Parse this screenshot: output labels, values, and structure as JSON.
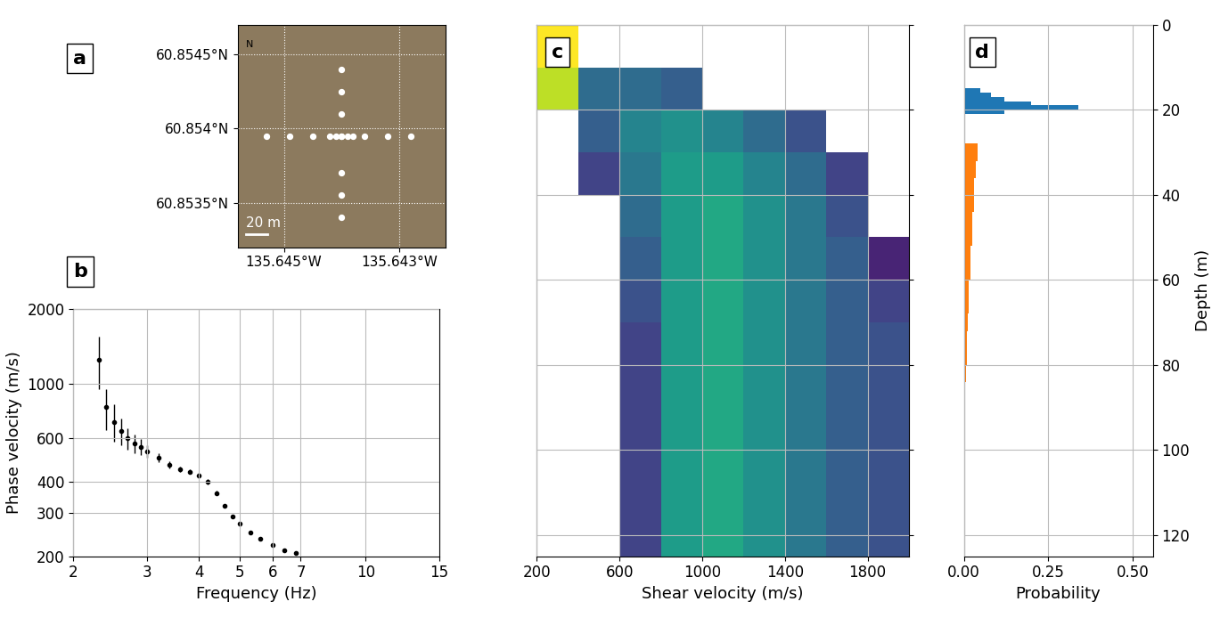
{
  "chart_data": [
    {
      "type": "map",
      "title": "a",
      "x": [
        -135.644,
        -135.644,
        -135.644,
        -135.644,
        -135.644,
        -135.644,
        -135.644,
        -135.644,
        -135.6453,
        -135.6449,
        -135.6445,
        -135.6442,
        -135.6438,
        -135.6436,
        -135.6432,
        -135.6428,
        -135.6441,
        -135.6439
      ],
      "y": [
        60.8544,
        60.85425,
        60.8541,
        60.85395,
        60.85395,
        60.8537,
        60.85355,
        60.8534,
        60.85395,
        60.85395,
        60.85395,
        60.85395,
        60.85395,
        60.85395,
        60.85395,
        60.85395,
        60.85395,
        60.85395
      ],
      "xlim": [
        -135.6458,
        -135.6422
      ],
      "ylim": [
        60.8532,
        60.8547
      ],
      "xticks": [
        {
          "value": -135.645,
          "label": "135.645°W"
        },
        {
          "value": -135.643,
          "label": "135.643°W"
        }
      ],
      "yticks": [
        {
          "value": 60.8535,
          "label": "60.8535°N"
        },
        {
          "value": 60.854,
          "label": "60.854°N"
        },
        {
          "value": 60.8545,
          "label": "60.8545°N"
        }
      ],
      "annotations": [
        "N"
      ],
      "scale_bar": {
        "label": "20 m",
        "length": 0.000369
      },
      "color": "#ffffff",
      "grid": true
    },
    {
      "type": "scatter",
      "title": "b",
      "x": [
        2.3,
        2.4,
        2.5,
        2.6,
        2.7,
        2.8,
        2.9,
        3.0,
        3.2,
        3.4,
        3.6,
        3.8,
        4.0,
        4.2,
        4.4,
        4.6,
        4.8,
        5.0,
        5.3,
        5.6,
        6.0,
        6.4,
        6.8
      ],
      "values": [
        1250,
        800,
        700,
        640,
        600,
        570,
        555,
        530,
        500,
        470,
        450,
        440,
        425,
        400,
        360,
        320,
        290,
        270,
        250,
        235,
        222,
        212,
        206
      ],
      "errors": [
        300,
        150,
        120,
        80,
        60,
        50,
        40,
        30,
        20,
        15,
        12,
        10,
        10,
        10,
        8,
        6,
        5,
        5,
        4,
        4,
        3,
        3,
        3
      ],
      "x_label": "Frequency (Hz)",
      "y_label": "Phase velocity (m/s)",
      "xlim": [
        2,
        15
      ],
      "ylim": [
        200,
        2000
      ],
      "xticks": [
        2,
        3,
        4,
        5,
        6,
        7,
        10,
        15
      ],
      "yticks": [
        200,
        300,
        400,
        600,
        1000,
        2000
      ],
      "log": true,
      "grid": true,
      "color": "#000000",
      "marker": "o"
    },
    {
      "type": "heatmap",
      "title": "c",
      "x_label": "Shear velocity (m/s)",
      "velocity_bins": [
        200,
        400,
        600,
        800,
        1000,
        1200,
        1400,
        1600,
        1800,
        2000
      ],
      "depth_bins": [
        0,
        10,
        20,
        30,
        40,
        50,
        60,
        70,
        80,
        90,
        100,
        110,
        120,
        125
      ],
      "cells": [
        [
          1.0,
          0,
          0,
          0,
          0,
          0,
          0,
          0,
          0
        ],
        [
          0.9,
          0.35,
          0.35,
          0.3,
          0,
          0,
          0,
          0,
          0
        ],
        [
          0,
          0.3,
          0.45,
          0.5,
          0.45,
          0.35,
          0.25,
          0,
          0
        ],
        [
          0,
          0.2,
          0.4,
          0.55,
          0.55,
          0.45,
          0.35,
          0.2,
          0
        ],
        [
          0,
          0,
          0.35,
          0.55,
          0.6,
          0.5,
          0.4,
          0.25,
          0
        ],
        [
          0,
          0,
          0.3,
          0.55,
          0.6,
          0.5,
          0.4,
          0.3,
          0.1
        ],
        [
          0,
          0,
          0.25,
          0.55,
          0.6,
          0.5,
          0.4,
          0.3,
          0.2
        ],
        [
          0,
          0,
          0.2,
          0.55,
          0.6,
          0.5,
          0.4,
          0.3,
          0.25
        ],
        [
          0,
          0,
          0.2,
          0.55,
          0.6,
          0.5,
          0.4,
          0.3,
          0.25
        ],
        [
          0,
          0,
          0.2,
          0.55,
          0.6,
          0.5,
          0.4,
          0.3,
          0.25
        ],
        [
          0,
          0,
          0.2,
          0.55,
          0.6,
          0.5,
          0.4,
          0.3,
          0.25
        ],
        [
          0,
          0,
          0.2,
          0.55,
          0.6,
          0.5,
          0.4,
          0.3,
          0.25
        ],
        [
          0,
          0,
          0.2,
          0.55,
          0.6,
          0.5,
          0.4,
          0.3,
          0.25
        ]
      ],
      "color_range": [
        0,
        1
      ],
      "xlim": [
        200,
        2000
      ],
      "ylim": [
        125,
        0
      ],
      "xticks": [
        200,
        600,
        1000,
        1400,
        1800
      ],
      "yticks": [
        0,
        20,
        40,
        60,
        80,
        100,
        120
      ],
      "tick_labels": "x",
      "grid": true
    },
    {
      "type": "histogram",
      "title": "d",
      "x_label": "Probability",
      "y_label": "Depth (m)",
      "orientation": "horizontal",
      "series": [
        {
          "color": "#1f77b4",
          "bins": [
            15,
            16,
            17,
            18,
            19,
            20,
            21
          ],
          "values": [
            0.05,
            0.08,
            0.12,
            0.2,
            0.34,
            0.12
          ]
        },
        {
          "color": "#ff7f0e",
          "bins": [
            28,
            32,
            36,
            40,
            44,
            48,
            52,
            56,
            60,
            64,
            68,
            72,
            76,
            80,
            84,
            88,
            92
          ],
          "values": [
            0.04,
            0.035,
            0.03,
            0.03,
            0.025,
            0.025,
            0.02,
            0.02,
            0.015,
            0.015,
            0.012,
            0.01,
            0.008,
            0.006,
            0.004,
            0.002
          ]
        }
      ],
      "xlim": [
        0,
        0.56
      ],
      "ylim": [
        125,
        0
      ],
      "xticks": [
        {
          "value": 0,
          "label": "0.00"
        },
        {
          "value": 0.25,
          "label": "0.25"
        },
        {
          "value": 0.5,
          "label": "0.50"
        }
      ],
      "yticks": [
        0,
        20,
        40,
        60,
        80,
        100,
        120
      ],
      "grid": true
    }
  ]
}
